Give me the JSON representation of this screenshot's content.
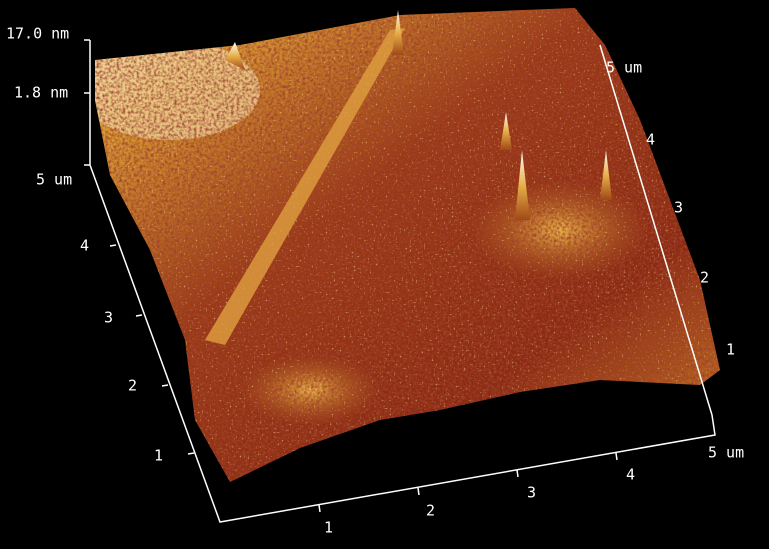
{
  "z_axis": {
    "labels": [
      "17.0 nm",
      "1.8 nm"
    ]
  },
  "left_axis": {
    "labels": [
      "5 um",
      "4",
      "3",
      "2",
      "1"
    ]
  },
  "bottom_axis": {
    "labels": [
      "1",
      "2",
      "3",
      "4",
      "5 um"
    ]
  },
  "right_axis": {
    "labels": [
      "5 um",
      "4",
      "3",
      "2",
      "1"
    ]
  }
}
